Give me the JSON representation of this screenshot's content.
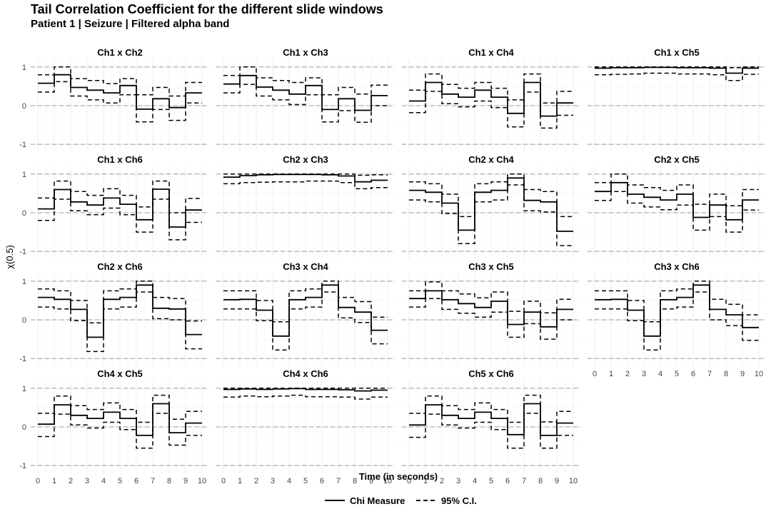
{
  "header": {
    "title": "Tail Correlation Coefficient for the different slide windows",
    "subtitle": "Patient 1 | Seizure | Filtered alpha band"
  },
  "legend": {
    "chi_label": "Chi Measure",
    "ci_label": "95% C.I."
  },
  "chart_data": {
    "type": "line",
    "step": true,
    "xlabel": "Time (in seconds)",
    "ylabel": "χ(0.5)",
    "xlim": [
      0,
      10
    ],
    "ylim": [
      -1,
      1
    ],
    "x_ticks": [
      0,
      1,
      2,
      3,
      4,
      5,
      6,
      7,
      8,
      9,
      10
    ],
    "y_ticks": [
      -1,
      0,
      1
    ],
    "x_step_edges": [
      0,
      1,
      2,
      3,
      4,
      5,
      6,
      7,
      8,
      9,
      10
    ],
    "grid": true,
    "legend_position": "bottom",
    "panels": [
      {
        "name": "Ch1 x Ch2",
        "chi": [
          0.58,
          0.8,
          0.47,
          0.4,
          0.33,
          0.52,
          -0.09,
          0.18,
          -0.05,
          0.33
        ],
        "upper": [
          0.8,
          1.0,
          0.7,
          0.65,
          0.57,
          0.7,
          0.28,
          0.47,
          0.25,
          0.6
        ],
        "lower": [
          0.35,
          0.62,
          0.25,
          0.15,
          0.07,
          0.28,
          -0.42,
          -0.1,
          -0.38,
          0.07
        ]
      },
      {
        "name": "Ch1 x Ch3",
        "chi": [
          0.56,
          0.78,
          0.48,
          0.4,
          0.3,
          0.52,
          -0.1,
          0.18,
          -0.12,
          0.26
        ],
        "upper": [
          0.78,
          1.0,
          0.72,
          0.65,
          0.6,
          0.72,
          0.28,
          0.47,
          0.3,
          0.53
        ],
        "lower": [
          0.33,
          0.55,
          0.25,
          0.15,
          0.03,
          0.28,
          -0.42,
          -0.13,
          -0.43,
          0.0
        ]
      },
      {
        "name": "Ch1 x Ch4",
        "chi": [
          0.12,
          0.6,
          0.3,
          0.22,
          0.4,
          0.22,
          -0.2,
          0.6,
          -0.27,
          0.07
        ],
        "upper": [
          0.4,
          0.82,
          0.55,
          0.45,
          0.6,
          0.45,
          0.15,
          0.82,
          0.07,
          0.37
        ],
        "lower": [
          -0.18,
          0.37,
          0.05,
          -0.03,
          0.12,
          -0.05,
          -0.55,
          0.35,
          -0.58,
          -0.25
        ]
      },
      {
        "name": "Ch1 x Ch5",
        "chi": [
          0.97,
          0.98,
          0.98,
          0.99,
          0.99,
          0.98,
          0.98,
          0.97,
          0.84,
          0.97
        ],
        "upper": [
          1.0,
          1.0,
          1.0,
          1.0,
          1.0,
          1.0,
          1.0,
          1.0,
          0.98,
          1.0
        ],
        "lower": [
          0.8,
          0.81,
          0.82,
          0.84,
          0.84,
          0.82,
          0.82,
          0.8,
          0.65,
          0.81
        ]
      },
      {
        "name": "Ch1 x Ch6",
        "chi": [
          0.1,
          0.6,
          0.28,
          0.2,
          0.38,
          0.22,
          -0.18,
          0.61,
          -0.37,
          0.07
        ],
        "upper": [
          0.38,
          0.82,
          0.55,
          0.45,
          0.62,
          0.45,
          0.15,
          0.82,
          0.0,
          0.37
        ],
        "lower": [
          -0.2,
          0.35,
          0.05,
          -0.05,
          0.12,
          -0.05,
          -0.5,
          0.35,
          -0.7,
          -0.25
        ]
      },
      {
        "name": "Ch2 x Ch3",
        "chi": [
          0.92,
          0.96,
          0.98,
          0.99,
          0.99,
          0.99,
          0.98,
          0.95,
          0.8,
          0.84
        ],
        "upper": [
          1.0,
          1.0,
          1.0,
          1.0,
          1.0,
          1.0,
          1.0,
          1.0,
          0.97,
          0.98
        ],
        "lower": [
          0.75,
          0.78,
          0.79,
          0.8,
          0.8,
          0.82,
          0.82,
          0.78,
          0.62,
          0.65
        ]
      },
      {
        "name": "Ch2 x Ch4",
        "chi": [
          0.58,
          0.53,
          0.25,
          -0.45,
          0.53,
          0.58,
          0.9,
          0.32,
          0.28,
          -0.48
        ],
        "upper": [
          0.8,
          0.75,
          0.48,
          -0.1,
          0.75,
          0.8,
          1.0,
          0.6,
          0.55,
          -0.1
        ],
        "lower": [
          0.33,
          0.28,
          -0.02,
          -0.8,
          0.28,
          0.33,
          0.72,
          0.05,
          0.02,
          -0.85
        ]
      },
      {
        "name": "Ch2 x Ch5",
        "chi": [
          0.55,
          0.78,
          0.48,
          0.4,
          0.33,
          0.48,
          -0.12,
          0.2,
          -0.18,
          0.33
        ],
        "upper": [
          0.78,
          1.0,
          0.72,
          0.65,
          0.58,
          0.72,
          0.22,
          0.48,
          0.18,
          0.6
        ],
        "lower": [
          0.32,
          0.55,
          0.25,
          0.15,
          0.08,
          0.2,
          -0.45,
          -0.1,
          -0.5,
          0.07
        ]
      },
      {
        "name": "Ch2 x Ch6",
        "chi": [
          0.58,
          0.53,
          0.27,
          -0.45,
          0.53,
          0.58,
          0.9,
          0.3,
          0.28,
          -0.38
        ],
        "upper": [
          0.8,
          0.75,
          0.5,
          -0.08,
          0.75,
          0.8,
          1.0,
          0.58,
          0.55,
          -0.03
        ],
        "lower": [
          0.33,
          0.28,
          -0.02,
          -0.82,
          0.28,
          0.33,
          0.72,
          0.03,
          0.0,
          -0.75
        ]
      },
      {
        "name": "Ch3 x Ch4",
        "chi": [
          0.52,
          0.53,
          0.25,
          -0.42,
          0.52,
          0.58,
          0.9,
          0.32,
          0.2,
          -0.27
        ],
        "upper": [
          0.75,
          0.75,
          0.5,
          -0.05,
          0.75,
          0.8,
          1.0,
          0.58,
          0.47,
          0.07
        ],
        "lower": [
          0.28,
          0.28,
          -0.02,
          -0.78,
          0.28,
          0.33,
          0.72,
          0.05,
          -0.07,
          -0.62
        ]
      },
      {
        "name": "Ch3 x Ch5",
        "chi": [
          0.55,
          0.75,
          0.52,
          0.42,
          0.32,
          0.48,
          -0.12,
          0.2,
          -0.18,
          0.27
        ],
        "upper": [
          0.75,
          0.98,
          0.75,
          0.67,
          0.57,
          0.72,
          0.22,
          0.48,
          0.18,
          0.53
        ],
        "lower": [
          0.33,
          0.55,
          0.27,
          0.17,
          0.07,
          0.2,
          -0.45,
          -0.1,
          -0.5,
          0.0
        ]
      },
      {
        "name": "Ch3 x Ch6",
        "chi": [
          0.52,
          0.53,
          0.25,
          -0.42,
          0.52,
          0.58,
          0.9,
          0.27,
          0.13,
          -0.2
        ],
        "upper": [
          0.75,
          0.75,
          0.5,
          -0.05,
          0.75,
          0.8,
          1.0,
          0.53,
          0.4,
          0.13
        ],
        "lower": [
          0.28,
          0.28,
          -0.02,
          -0.78,
          0.28,
          0.33,
          0.72,
          0.0,
          -0.15,
          -0.53
        ]
      },
      {
        "name": "Ch4 x Ch5",
        "chi": [
          0.07,
          0.57,
          0.3,
          0.22,
          0.38,
          0.22,
          -0.22,
          0.6,
          -0.15,
          0.1
        ],
        "upper": [
          0.35,
          0.8,
          0.55,
          0.45,
          0.62,
          0.45,
          0.12,
          0.82,
          0.2,
          0.4
        ],
        "lower": [
          -0.25,
          0.33,
          0.05,
          -0.03,
          0.12,
          -0.07,
          -0.55,
          0.35,
          -0.47,
          -0.22
        ]
      },
      {
        "name": "Ch4 x Ch6",
        "chi": [
          0.97,
          0.98,
          0.97,
          0.98,
          0.99,
          0.97,
          0.97,
          0.96,
          0.93,
          0.95
        ],
        "upper": [
          1.0,
          1.0,
          1.0,
          1.0,
          1.0,
          1.0,
          1.0,
          1.0,
          1.0,
          1.0
        ],
        "lower": [
          0.77,
          0.8,
          0.78,
          0.8,
          0.82,
          0.78,
          0.78,
          0.77,
          0.72,
          0.77
        ]
      },
      {
        "name": "Ch5 x Ch6",
        "chi": [
          0.05,
          0.57,
          0.3,
          0.22,
          0.38,
          0.22,
          -0.2,
          0.6,
          -0.22,
          0.1
        ],
        "upper": [
          0.35,
          0.8,
          0.55,
          0.45,
          0.62,
          0.45,
          0.12,
          0.82,
          0.13,
          0.4
        ],
        "lower": [
          -0.27,
          0.33,
          0.05,
          -0.03,
          0.12,
          -0.07,
          -0.55,
          0.35,
          -0.55,
          -0.22
        ]
      }
    ]
  }
}
